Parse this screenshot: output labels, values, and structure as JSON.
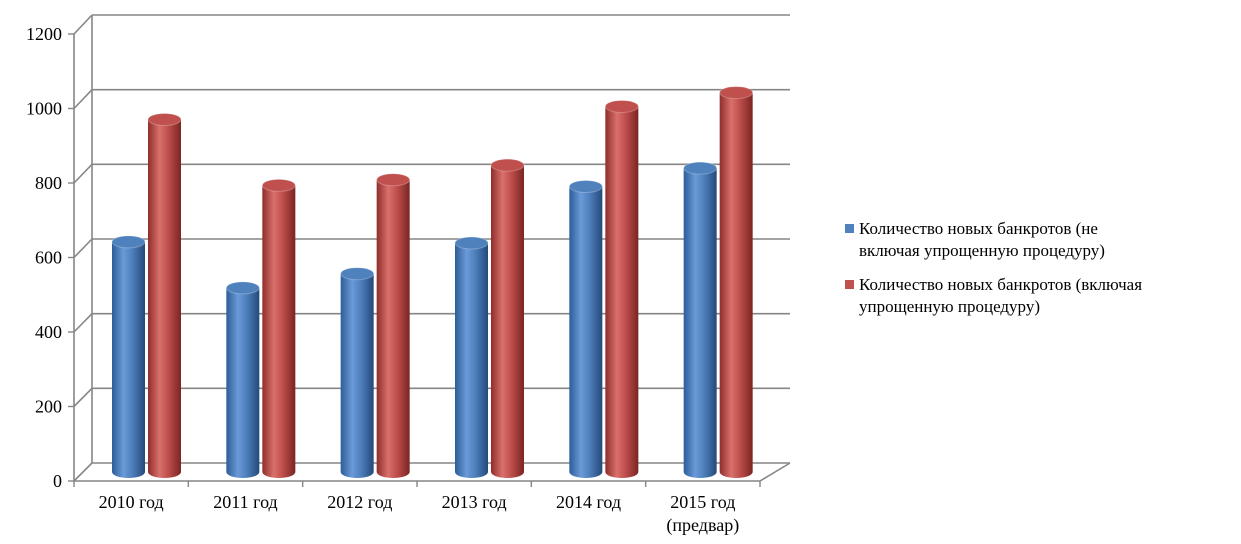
{
  "chart_data": {
    "type": "bar",
    "categories": [
      [
        "2010 год"
      ],
      [
        "2011 год"
      ],
      [
        "2012 год"
      ],
      [
        "2013 год"
      ],
      [
        "2014 год"
      ],
      [
        "2015 год",
        "(предвар)"
      ]
    ],
    "series": [
      {
        "name": "Количество новых банкротов (не включая упрощенную процедуру)",
        "legend_lines": [
          "Количество новых банкротов (не",
          "включая упрощенную  процедуру)"
        ],
        "values": [
          615,
          492,
          530,
          612,
          763,
          812
        ],
        "color": "#4f81bd"
      },
      {
        "name": "Количество новых банкротов (включая упрощенную процедуру)",
        "legend_lines": [
          "Количество новых банкротов (включая",
          "упрощенную  процедуру)"
        ],
        "values": [
          942,
          766,
          781,
          820,
          977,
          1014
        ],
        "color": "#c0504d"
      }
    ],
    "ylim": [
      0,
      1200
    ],
    "yticks": [
      "0",
      "200",
      "400",
      "600",
      "800",
      "1000",
      "1200"
    ],
    "grid": true,
    "legend_position": "right",
    "style": "3d-cylinder"
  }
}
